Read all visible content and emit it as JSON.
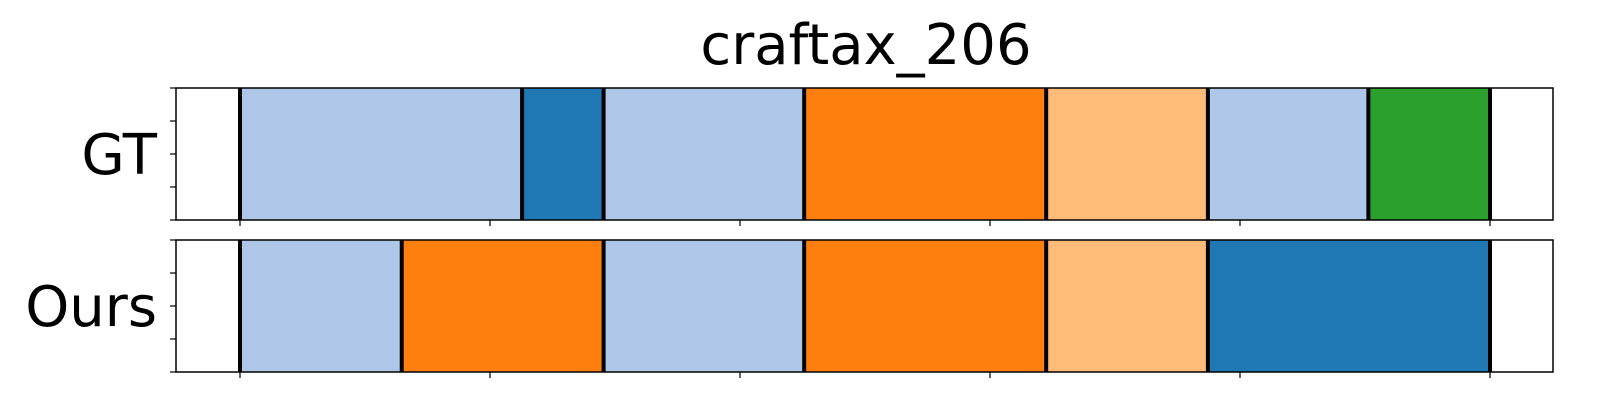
{
  "chart_data": {
    "type": "segmentation-timeline",
    "title": "craftax_206",
    "xlim": [
      0,
      100
    ],
    "rows": [
      {
        "label": "GT",
        "segments": [
          {
            "start": 5,
            "end": 27.5,
            "color": "#aec7e8"
          },
          {
            "start": 27.5,
            "end": 34,
            "color": "#1f77b4"
          },
          {
            "start": 34,
            "end": 50,
            "color": "#aec7e8"
          },
          {
            "start": 50,
            "end": 69.3,
            "color": "#ff7f0e"
          },
          {
            "start": 69.3,
            "end": 82.2,
            "color": "#ffbb78"
          },
          {
            "start": 82.2,
            "end": 95,
            "color": "#aec7e8"
          },
          {
            "start": 95,
            "end": 104.7,
            "color": "#2ca02c"
          }
        ]
      },
      {
        "label": "Ours",
        "segments": [
          {
            "start": 5,
            "end": 17.9,
            "color": "#aec7e8"
          },
          {
            "start": 17.9,
            "end": 34,
            "color": "#ff7f0e"
          },
          {
            "start": 34,
            "end": 50,
            "color": "#aec7e8"
          },
          {
            "start": 50,
            "end": 69.3,
            "color": "#ff7f0e"
          },
          {
            "start": 69.3,
            "end": 82.2,
            "color": "#ffbb78"
          },
          {
            "start": 82.2,
            "end": 104.7,
            "color": "#1f77b4"
          }
        ]
      }
    ],
    "boundary_color": "#000000",
    "background_color": "#ffffff"
  }
}
